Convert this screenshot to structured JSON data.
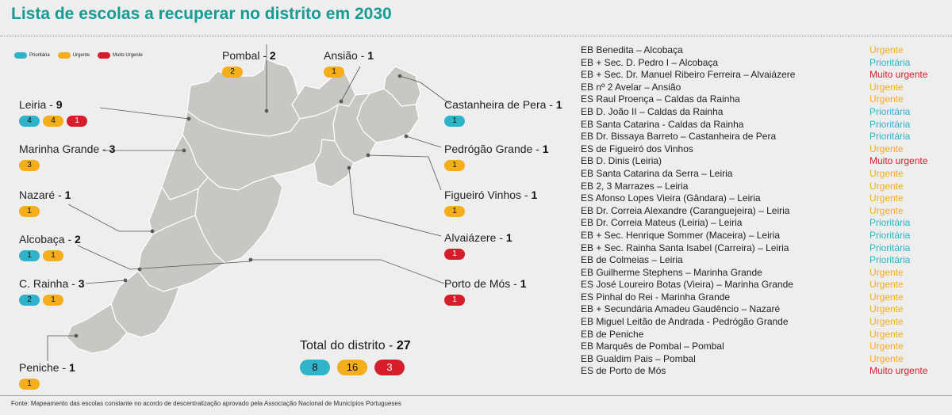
{
  "title": "Lista de escolas a recuperar no distrito em 2030",
  "source": "Fonte: Mapeamento das escolas constante no acordo de descentralização aprovado pela Associação Nacional de Municípios Portugueses",
  "colors": {
    "title": "#1a9a92",
    "prioritaria": "#2fb3c8",
    "urgente": "#f4ad1b",
    "muito_urgente": "#d51d2b",
    "map_fill": "#c9c7c1"
  },
  "legend": [
    {
      "label": "Prioritária",
      "color": "#2fb3c8"
    },
    {
      "label": "Urgente",
      "color": "#f4ad1b"
    },
    {
      "label": "Muito Urgente",
      "color": "#d51d2b"
    }
  ],
  "separator": " - ",
  "districts": [
    {
      "name": "Pombal",
      "count": "2",
      "pills": [
        {
          "type": "orange",
          "value": "2"
        }
      ]
    },
    {
      "name": "Ansião",
      "count": "1",
      "pills": [
        {
          "type": "orange",
          "value": "1"
        }
      ]
    },
    {
      "name": "Leiria",
      "count": "9",
      "pills": [
        {
          "type": "blue",
          "value": "4"
        },
        {
          "type": "orange",
          "value": "4"
        },
        {
          "type": "red",
          "value": "1"
        }
      ]
    },
    {
      "name": "Marinha Grande",
      "count": "3",
      "pills": [
        {
          "type": "orange",
          "value": "3"
        }
      ]
    },
    {
      "name": "Nazaré",
      "count": "1",
      "pills": [
        {
          "type": "orange",
          "value": "1"
        }
      ]
    },
    {
      "name": "Alcobaça",
      "count": "2",
      "pills": [
        {
          "type": "blue",
          "value": "1"
        },
        {
          "type": "orange",
          "value": "1"
        }
      ]
    },
    {
      "name": "C. Rainha",
      "count": "3",
      "pills": [
        {
          "type": "blue",
          "value": "2"
        },
        {
          "type": "orange",
          "value": "1"
        }
      ]
    },
    {
      "name": "Peniche",
      "count": "1",
      "pills": [
        {
          "type": "orange",
          "value": "1"
        }
      ]
    },
    {
      "name": "Castanheira de Pera",
      "count": "1",
      "pills": [
        {
          "type": "blue",
          "value": "1"
        }
      ]
    },
    {
      "name": "Pedrógão Grande",
      "count": "1",
      "pills": [
        {
          "type": "orange",
          "value": "1"
        }
      ]
    },
    {
      "name": "Figueiró Vinhos",
      "count": "1",
      "pills": [
        {
          "type": "orange",
          "value": "1"
        }
      ]
    },
    {
      "name": "Alvaiázere",
      "count": "1",
      "pills": [
        {
          "type": "red",
          "value": "1"
        }
      ]
    },
    {
      "name": "Porto de Mós",
      "count": "1",
      "pills": [
        {
          "type": "red",
          "value": "1"
        }
      ]
    }
  ],
  "total": {
    "label": "Total do distrito",
    "count": "27",
    "pills": [
      {
        "type": "blue",
        "value": "8"
      },
      {
        "type": "orange",
        "value": "16"
      },
      {
        "type": "red",
        "value": "3"
      }
    ]
  },
  "schools": [
    {
      "name": "EB Benedita – Alcobaça",
      "status": "Urgente",
      "level": "urgente"
    },
    {
      "name": "EB + Sec. D. Pedro I – Alcobaça",
      "status": "Prioritária",
      "level": "prioritaria"
    },
    {
      "name": "EB + Sec. Dr. Manuel Ribeiro Ferreira – Alvaiázere",
      "status": "Muito urgente",
      "level": "muito_urgente"
    },
    {
      "name": "EB nº 2 Avelar – Ansião",
      "status": "Urgente",
      "level": "urgente"
    },
    {
      "name": "ES Raul Proença – Caldas da Rainha",
      "status": "Urgente",
      "level": "urgente"
    },
    {
      "name": "EB D. João II – Caldas da Rainha",
      "status": "Prioritária",
      "level": "prioritaria"
    },
    {
      "name": "EB Santa Catarina - Caldas da Rainha",
      "status": "Prioritária",
      "level": "prioritaria"
    },
    {
      "name": "EB Dr. Bissaya Barreto – Castanheira de Pera",
      "status": "Prioritária",
      "level": "prioritaria"
    },
    {
      "name": "ES de Figueiró dos Vinhos",
      "status": "Urgente",
      "level": "urgente"
    },
    {
      "name": "EB D. Dinis (Leiria)",
      "status": "Muito urgente",
      "level": "muito_urgente"
    },
    {
      "name": "EB Santa Catarina da Serra – Leiria",
      "status": "Urgente",
      "level": "urgente"
    },
    {
      "name": "EB 2, 3 Marrazes – Leiria",
      "status": "Urgente",
      "level": "urgente"
    },
    {
      "name": "ES Afonso Lopes Vieira (Gândara) – Leiria",
      "status": "Urgente",
      "level": "urgente"
    },
    {
      "name": "EB Dr. Correia Alexandre (Caranguejeira) – Leiria",
      "status": "Urgente",
      "level": "urgente"
    },
    {
      "name": "EB Dr. Correia Mateus (Leiria) – Leiria",
      "status": "Prioritária",
      "level": "prioritaria"
    },
    {
      "name": "EB + Sec. Henrique Sommer (Maceira) – Leiria",
      "status": "Prioritária",
      "level": "prioritaria"
    },
    {
      "name": "EB + Sec. Rainha Santa Isabel (Carreira) – Leiria",
      "status": "Prioritária",
      "level": "prioritaria"
    },
    {
      "name": "EB de Colmeias – Leiria",
      "status": "Prioritária",
      "level": "prioritaria"
    },
    {
      "name": "EB Guilherme Stephens – Marinha Grande",
      "status": "Urgente",
      "level": "urgente"
    },
    {
      "name": "ES José Loureiro Botas (Vieira) – Marinha Grande",
      "status": "Urgente",
      "level": "urgente"
    },
    {
      "name": "ES Pinhal do Rei - Marinha Grande",
      "status": "Urgente",
      "level": "urgente"
    },
    {
      "name": "EB + Secundária Amadeu Gaudêncio – Nazaré",
      "status": "Urgente",
      "level": "urgente"
    },
    {
      "name": "EB Miguel Leitão de Andrada - Pedrógão Grande",
      "status": "Urgente",
      "level": "urgente"
    },
    {
      "name": "EB de Peniche",
      "status": "Urgente",
      "level": "urgente"
    },
    {
      "name": "EB Marquês de Pombal – Pombal",
      "status": "Urgente",
      "level": "urgente"
    },
    {
      "name": "EB Gualdim Pais – Pombal",
      "status": "Urgente",
      "level": "urgente"
    },
    {
      "name": "ES de Porto de Mós",
      "status": "Muito urgente",
      "level": "muito_urgente"
    }
  ]
}
